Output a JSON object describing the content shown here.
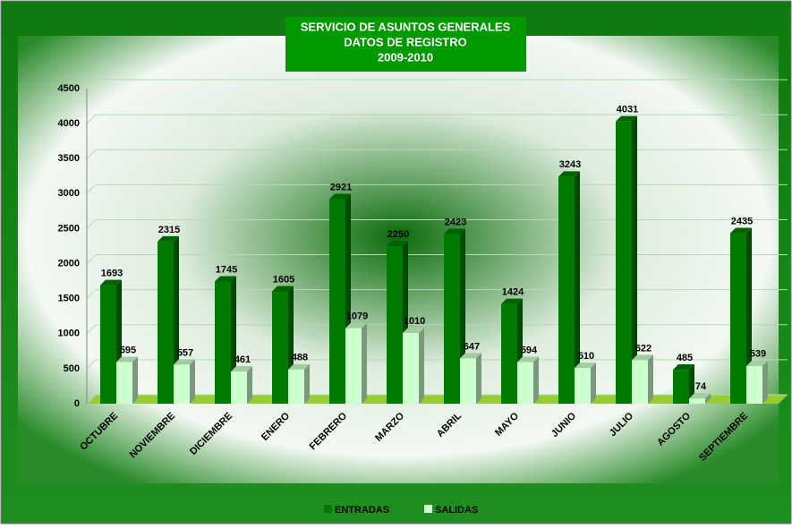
{
  "chart_data": {
    "type": "bar3d",
    "title": [
      "SERVICIO DE ASUNTOS GENERALES",
      "DATOS DE REGISTRO",
      "2009-2010"
    ],
    "categories": [
      "OCTUBRE",
      "NOVIEMBRE",
      "DICIEMBRE",
      "ENERO",
      "FEBRERO",
      "MARZO",
      "ABRIL",
      "MAYO",
      "JUNIO",
      "JULIO",
      "AGOSTO",
      "SEPTIEMBRE"
    ],
    "series": [
      {
        "name": "ENTRADAS",
        "color": "#007a00",
        "values": [
          1693,
          2315,
          1745,
          1605,
          2921,
          2250,
          2423,
          1424,
          3243,
          4031,
          485,
          2435
        ]
      },
      {
        "name": "SALIDAS",
        "color": "#ccffcc",
        "values": [
          595,
          557,
          461,
          488,
          1079,
          1010,
          647,
          594,
          510,
          622,
          74,
          539
        ]
      }
    ],
    "ylim": [
      0,
      4500
    ],
    "yticks": [
      0,
      500,
      1000,
      1500,
      2000,
      2500,
      3000,
      3500,
      4000,
      4500
    ],
    "grid": true,
    "legend": "bottom"
  }
}
